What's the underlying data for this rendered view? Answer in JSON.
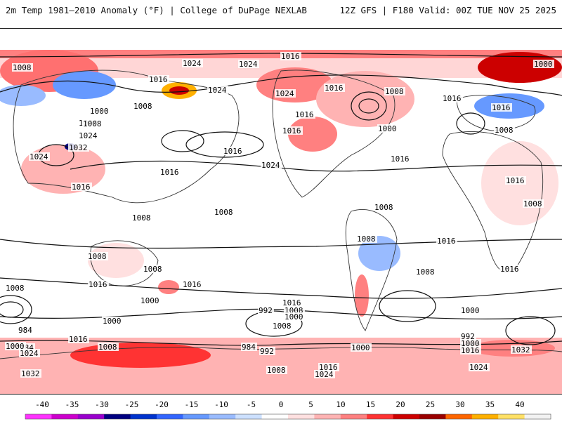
{
  "header": {
    "left_title": "2m Temp 1981–2010 Anomaly (°F) | College of DuPage NEXLAB",
    "right_title": "12Z GFS | F180 Valid: 00Z TUE NOV 25 2025"
  },
  "isobars": [
    {
      "text": "1016"
    },
    {
      "text": "1024"
    },
    {
      "text": "1008"
    },
    {
      "text": "1016"
    },
    {
      "text": "1024"
    },
    {
      "text": "1008"
    },
    {
      "text": "1008"
    },
    {
      "text": "1016"
    },
    {
      "text": "1024"
    },
    {
      "text": "1016"
    },
    {
      "text": "1008"
    },
    {
      "text": "1016"
    },
    {
      "text": "1000"
    },
    {
      "text": "1008"
    },
    {
      "text": "1024"
    },
    {
      "text": "1032"
    },
    {
      "text": "1016"
    },
    {
      "text": "1008"
    },
    {
      "text": "1024"
    },
    {
      "text": "1000"
    },
    {
      "text": "1016"
    },
    {
      "text": "1016"
    },
    {
      "text": "1016"
    },
    {
      "text": "1024"
    },
    {
      "text": "1016"
    },
    {
      "text": "1016"
    },
    {
      "text": "1016"
    },
    {
      "text": "1008"
    },
    {
      "text": "1008"
    },
    {
      "text": "1008"
    },
    {
      "text": "1008"
    },
    {
      "text": "1008"
    },
    {
      "text": "1016"
    },
    {
      "text": "1008"
    },
    {
      "text": "1008"
    },
    {
      "text": "1016"
    },
    {
      "text": "1016"
    },
    {
      "text": "1008"
    },
    {
      "text": "1016"
    },
    {
      "text": "1008"
    },
    {
      "text": "1016"
    },
    {
      "text": "1000"
    },
    {
      "text": "1008"
    },
    {
      "text": "1000"
    },
    {
      "text": "984"
    },
    {
      "text": "1000"
    },
    {
      "text": "992"
    },
    {
      "text": "1008"
    },
    {
      "text": "1000"
    },
    {
      "text": "984"
    },
    {
      "text": "1000"
    },
    {
      "text": "984"
    },
    {
      "text": "992"
    },
    {
      "text": "992"
    },
    {
      "text": "1000"
    },
    {
      "text": "1016"
    },
    {
      "text": "1032"
    },
    {
      "text": "1008"
    },
    {
      "text": "1016"
    },
    {
      "text": "1024"
    },
    {
      "text": "1008"
    },
    {
      "text": "1024"
    },
    {
      "text": "1000"
    },
    {
      "text": "1016"
    },
    {
      "text": "1024"
    },
    {
      "text": "1032"
    },
    {
      "text": "1000"
    },
    {
      "text": "1024"
    }
  ],
  "colorbar": {
    "ticks": [
      "-40",
      "-35",
      "-30",
      "-25",
      "-20",
      "-15",
      "-10",
      "-5",
      "0",
      "5",
      "10",
      "15",
      "20",
      "25",
      "30",
      "35",
      "40"
    ],
    "colors": [
      "#ff33ff",
      "#cc00cc",
      "#9900cc",
      "#000080",
      "#0033cc",
      "#3366ff",
      "#6699ff",
      "#99bbff",
      "#cce0ff",
      "#ffffff",
      "#ffe0e0",
      "#ffb3b3",
      "#ff8080",
      "#ff3333",
      "#cc0000",
      "#990000",
      "#ff6600",
      "#ffb000",
      "#ffe066",
      "#f2f2f2"
    ]
  }
}
